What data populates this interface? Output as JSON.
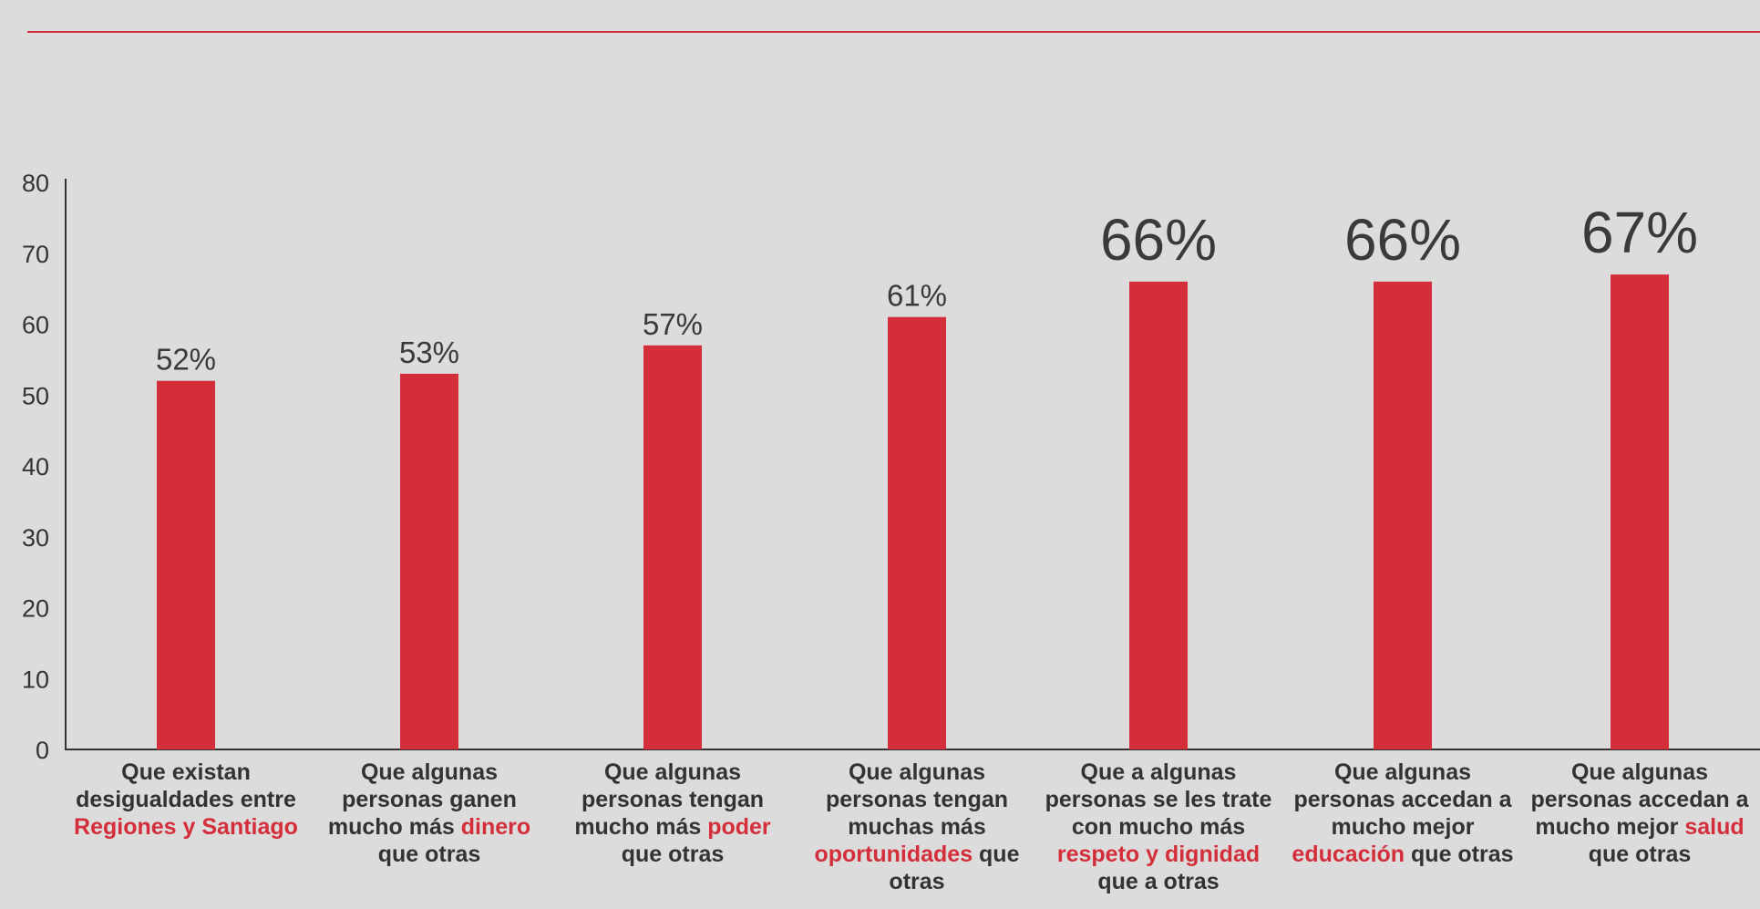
{
  "colors": {
    "bar": "#d42e3a",
    "top_rule": "#d42e3a",
    "axis": "#333333",
    "background": "#dcdcdc"
  },
  "chart_data": {
    "type": "bar",
    "ylim": [
      0,
      80
    ],
    "yticks": [
      "0",
      "10",
      "20",
      "30",
      "40",
      "50",
      "60",
      "70",
      "80"
    ],
    "grid": false,
    "values": [
      52,
      53,
      57,
      61,
      66,
      66,
      67
    ],
    "data_labels": [
      "52%",
      "53%",
      "57%",
      "61%",
      "66%",
      "66%",
      "67%"
    ],
    "categories": [
      {
        "parts": [
          {
            "text": "Que existan desigualdades entre ",
            "hl": false
          },
          {
            "text": "Regiones y Santiago",
            "hl": true
          }
        ]
      },
      {
        "parts": [
          {
            "text": "Que algunas personas ganen mucho más ",
            "hl": false
          },
          {
            "text": "dinero",
            "hl": true
          },
          {
            "text": " que otras",
            "hl": false
          }
        ]
      },
      {
        "parts": [
          {
            "text": "Que algunas personas tengan mucho más ",
            "hl": false
          },
          {
            "text": "poder",
            "hl": true
          },
          {
            "text": " que otras",
            "hl": false
          }
        ]
      },
      {
        "parts": [
          {
            "text": "Que algunas personas tengan muchas más ",
            "hl": false
          },
          {
            "text": "oportunidades",
            "hl": true
          },
          {
            "text": " que otras",
            "hl": false
          }
        ]
      },
      {
        "parts": [
          {
            "text": "Que a algunas personas se les trate con mucho más ",
            "hl": false
          },
          {
            "text": "respeto y dignidad",
            "hl": true
          },
          {
            "text": " que a otras",
            "hl": false
          }
        ]
      },
      {
        "parts": [
          {
            "text": "Que algunas personas accedan a mucho mejor ",
            "hl": false
          },
          {
            "text": "educación",
            "hl": true
          },
          {
            "text": " que otras",
            "hl": false
          }
        ]
      },
      {
        "parts": [
          {
            "text": "Que algunas personas accedan a mucho mejor ",
            "hl": false
          },
          {
            "text": "salud",
            "hl": true
          },
          {
            "text": " que otras",
            "hl": false
          }
        ]
      }
    ]
  }
}
